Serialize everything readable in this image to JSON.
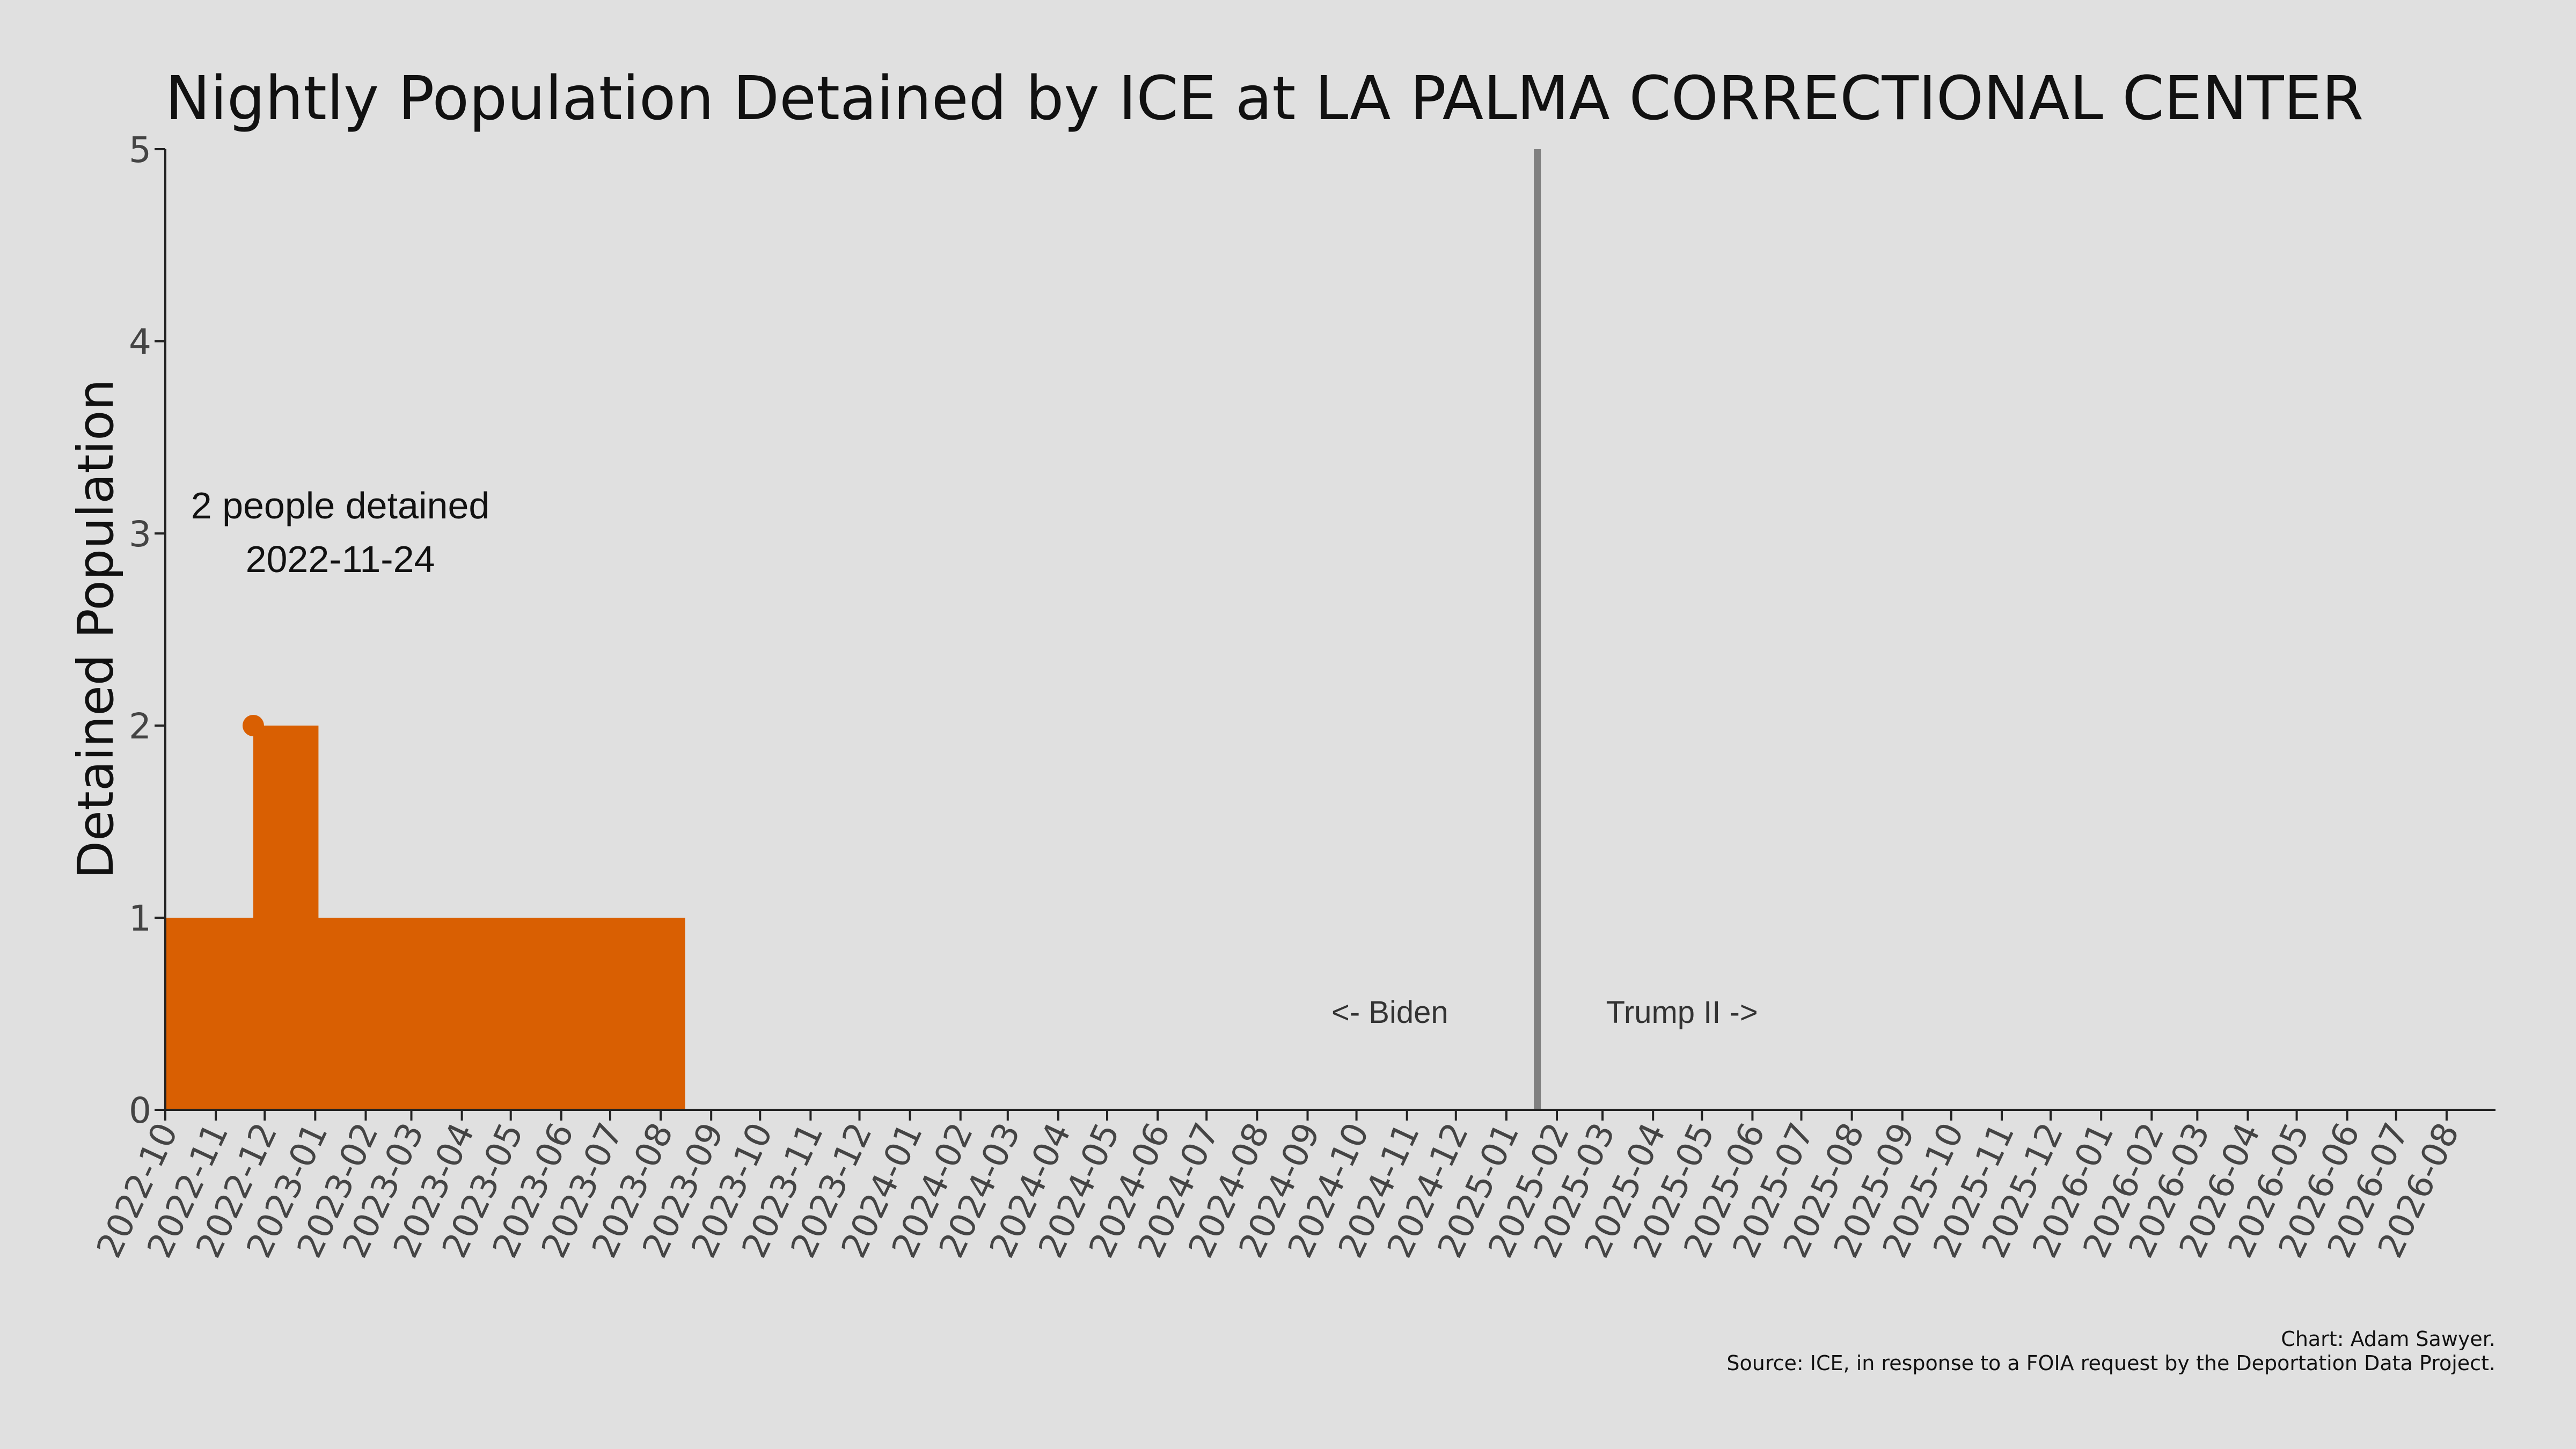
{
  "chart_data": {
    "type": "area",
    "title": "Nightly Population Detained by ICE at LA PALMA CORRECTIONAL CENTER",
    "xlabel": "",
    "ylabel": "Detained Population",
    "ylim": [
      0,
      5
    ],
    "yticks": [
      "0",
      "1",
      "2",
      "3",
      "4",
      "5"
    ],
    "xlim": [
      "2022-10-01",
      "2026-08-31"
    ],
    "xticks": [
      "2022-10",
      "2022-11",
      "2022-12",
      "2023-01",
      "2023-02",
      "2023-03",
      "2023-04",
      "2023-05",
      "2023-06",
      "2023-07",
      "2023-08",
      "2023-09",
      "2023-10",
      "2023-11",
      "2023-12",
      "2024-01",
      "2024-02",
      "2024-03",
      "2024-04",
      "2024-05",
      "2024-06",
      "2024-07",
      "2024-08",
      "2024-09",
      "2024-10",
      "2024-11",
      "2024-12",
      "2025-01",
      "2025-02",
      "2025-03",
      "2025-04",
      "2025-05",
      "2025-06",
      "2025-07",
      "2025-08",
      "2025-09",
      "2025-10",
      "2025-11",
      "2025-12",
      "2026-01",
      "2026-02",
      "2026-03",
      "2026-04",
      "2026-05",
      "2026-06",
      "2026-07",
      "2026-08"
    ],
    "grid": false,
    "series": [
      {
        "color": "#d95f02",
        "points": [
          {
            "x": "2022-10-01",
            "y": 1
          },
          {
            "x": "2022-11-24",
            "y": 2
          },
          {
            "x": "2023-01-03",
            "y": 1
          },
          {
            "x": "2023-08-16",
            "y": 0
          }
        ]
      }
    ],
    "peak": {
      "x": "2022-11-24",
      "y": 2,
      "label": "2 people detained",
      "date_label": "2022-11-24"
    },
    "divider": {
      "x": "2025-01-20",
      "color": "#808080",
      "left_label": "<- Biden",
      "right_label": "Trump II ->"
    },
    "caption": [
      "Chart: Adam Sawyer.",
      "Source: ICE, in response to a FOIA request by the Deportation Data Project."
    ]
  },
  "colors": {
    "background": "#e0e0e0",
    "fill": "#d95f02",
    "divider": "#808080",
    "axis": "#222222"
  }
}
